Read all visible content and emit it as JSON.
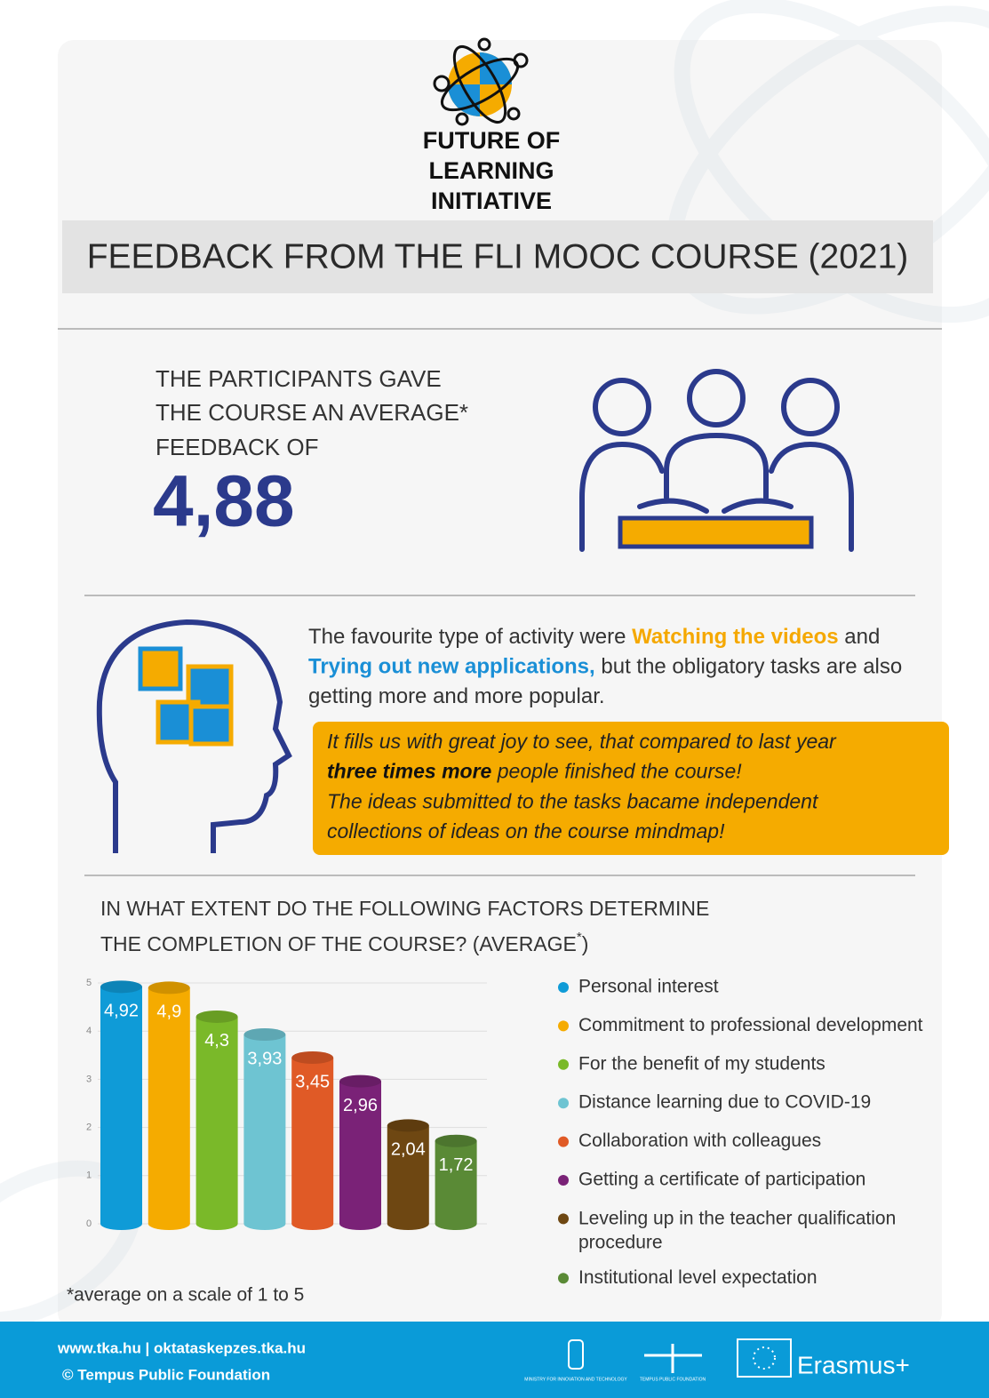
{
  "logo": {
    "lines": [
      "FUTURE OF",
      "LEARNING",
      "INITIATIVE"
    ]
  },
  "header": {
    "title": "FEEDBACK FROM THE FLI MOOC COURSE (2021)"
  },
  "rating": {
    "lines": [
      "THE PARTICIPANTS GAVE",
      "THE COURSE AN AVERAGE*",
      "FEEDBACK OF"
    ],
    "score": "4,88"
  },
  "activity": {
    "lines": [
      [
        {
          "text": "The favourite type of activity were "
        },
        {
          "text": "Watching the videos",
          "style": "orange"
        },
        {
          "text": " and"
        }
      ],
      [
        {
          "text": "Trying out new applications,",
          "style": "blue"
        },
        {
          "text": " but the obligatory tasks are also"
        }
      ],
      [
        {
          "text": "getting more and more popular."
        }
      ]
    ]
  },
  "highlight": {
    "lines": [
      [
        {
          "text": "It fills us with great joy to see, that compared to last year"
        }
      ],
      [
        {
          "text": "three times more",
          "style": "bold"
        },
        {
          "text": " people finished the course!"
        }
      ],
      [
        {
          "text": "The ideas submitted to the tasks bacame independent"
        }
      ],
      [
        {
          "text": "collections of ideas on the course mindmap!"
        }
      ]
    ]
  },
  "chart_data": {
    "type": "bar",
    "title_lines": [
      "IN WHAT EXTENT DO THE FOLLOWING FACTORS DETERMINE",
      "THE COMPLETION OF THE COURSE? (AVERAGE",
      "*",
      ")"
    ],
    "categories": [
      "Personal interest",
      "Commitment to professional development",
      "For the benefit of my students",
      "Distance learning due to COVID-19",
      "Collaboration with colleagues",
      "Getting a certificate of participation",
      "Leveling up in the teacher qualification procedure",
      "Institutional level expectation"
    ],
    "values": [
      4.92,
      4.9,
      4.3,
      3.93,
      3.45,
      2.96,
      2.04,
      1.72
    ],
    "value_labels": [
      "4,92",
      "4,9",
      "4,3",
      "3,93",
      "3,45",
      "2,96",
      "2,04",
      "1,72"
    ],
    "colors": [
      "#0f9bd7",
      "#f5ab00",
      "#7ab929",
      "#6ec4d2",
      "#e05a26",
      "#7a2277",
      "#6e4712",
      "#5a8a36"
    ],
    "ylim": [
      0,
      5
    ],
    "yticks": [
      0,
      1,
      2,
      3,
      4,
      5
    ],
    "grid": true,
    "legend": "right",
    "footnote": "*average on a scale of 1 to 5"
  },
  "footer": {
    "links": "www.tka.hu | oktataskepzes.tka.hu",
    "copyright": "© Tempus Public Foundation",
    "ministry": "MINISTRY FOR INNOVATION AND TECHNOLOGY",
    "tempus": "TEMPUS PUBLIC FOUNDATION",
    "erasmus": "Erasmus+"
  }
}
